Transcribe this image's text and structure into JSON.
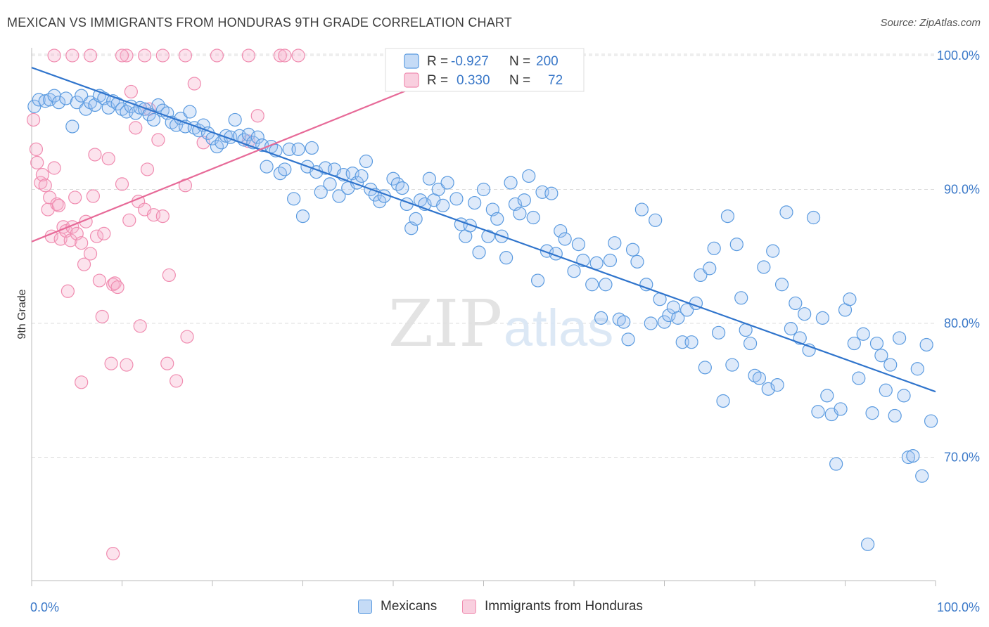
{
  "title": "MEXICAN VS IMMIGRANTS FROM HONDURAS 9TH GRADE CORRELATION CHART",
  "source": "Source: ZipAtlas.com",
  "watermark": {
    "zip": "ZIP",
    "atlas": "atlas"
  },
  "colors": {
    "blue": "#5b9be0",
    "blue_line": "#2f74cc",
    "pink": "#f08cb0",
    "pink_line": "#e76a98",
    "tick_text": "#3a78c8"
  },
  "stats_legend": [
    {
      "r_label": "R =",
      "r_value": "-0.927",
      "n_label": "N =",
      "n_value": "200"
    },
    {
      "r_label": "R =",
      "r_value": "0.330",
      "n_label": "N =",
      "n_value": "72"
    }
  ],
  "legend": [
    {
      "label": "Mexicans",
      "color": "#5b9be0"
    },
    {
      "label": "Immigrants from Honduras",
      "color": "#f08cb0"
    }
  ],
  "chart_data": {
    "type": "scatter",
    "title": "MEXICAN VS IMMIGRANTS FROM HONDURAS 9TH GRADE CORRELATION CHART",
    "xlabel": "",
    "ylabel": "9th Grade",
    "xlim": [
      0,
      100
    ],
    "ylim": [
      61.5,
      102
    ],
    "x_tick_labels": [
      "0.0%",
      "100.0%"
    ],
    "y_ticks": [
      70,
      80,
      90,
      100
    ],
    "y_tick_labels": [
      "70.0%",
      "80.0%",
      "90.0%",
      "100.0%"
    ],
    "grid": true,
    "legend_position": "bottom",
    "series": [
      {
        "name": "Mexicans",
        "color": "#5b9be0",
        "trend": {
          "x": [
            0,
            100
          ],
          "y": [
            99.1,
            74.9
          ]
        },
        "points": [
          [
            0.3,
            96.2
          ],
          [
            0.8,
            96.7
          ],
          [
            1.5,
            96.6
          ],
          [
            2,
            96.7
          ],
          [
            2.5,
            97
          ],
          [
            3,
            96.5
          ],
          [
            3.8,
            96.8
          ],
          [
            4.5,
            94.7
          ],
          [
            5,
            96.5
          ],
          [
            5.5,
            97
          ],
          [
            6,
            96
          ],
          [
            6.5,
            96.5
          ],
          [
            7,
            96.3
          ],
          [
            7.5,
            97
          ],
          [
            8,
            96.8
          ],
          [
            8.5,
            96.1
          ],
          [
            9,
            96.6
          ],
          [
            9.5,
            96.4
          ],
          [
            10,
            96
          ],
          [
            10.5,
            95.8
          ],
          [
            11,
            96.2
          ],
          [
            11.5,
            95.7
          ],
          [
            12,
            96.1
          ],
          [
            12.5,
            96
          ],
          [
            13,
            95.6
          ],
          [
            13.5,
            95.2
          ],
          [
            14,
            96.3
          ],
          [
            14.5,
            95.9
          ],
          [
            15,
            95.7
          ],
          [
            15.5,
            95
          ],
          [
            16,
            94.8
          ],
          [
            16.5,
            95.3
          ],
          [
            17,
            94.7
          ],
          [
            17.5,
            95.8
          ],
          [
            18,
            94.6
          ],
          [
            18.5,
            94.4
          ],
          [
            19,
            94.8
          ],
          [
            19.5,
            94.2
          ],
          [
            20,
            93.8
          ],
          [
            20.5,
            93.2
          ],
          [
            21,
            93.5
          ],
          [
            21.5,
            94
          ],
          [
            22,
            93.9
          ],
          [
            22.5,
            95.2
          ],
          [
            23,
            94
          ],
          [
            23.5,
            93.7
          ],
          [
            24,
            94.1
          ],
          [
            24.5,
            93.5
          ],
          [
            25,
            93.9
          ],
          [
            25.5,
            93.3
          ],
          [
            26,
            91.7
          ],
          [
            26.5,
            93.2
          ],
          [
            27,
            92.9
          ],
          [
            27.5,
            91.2
          ],
          [
            28,
            91.5
          ],
          [
            28.5,
            93
          ],
          [
            29,
            89.3
          ],
          [
            29.5,
            93
          ],
          [
            30,
            88
          ],
          [
            30.5,
            91.7
          ],
          [
            31,
            93.1
          ],
          [
            31.5,
            91.3
          ],
          [
            32,
            89.8
          ],
          [
            32.5,
            91.6
          ],
          [
            33,
            90.4
          ],
          [
            33.5,
            91.5
          ],
          [
            34,
            89.5
          ],
          [
            34.5,
            91.1
          ],
          [
            35,
            90.1
          ],
          [
            35.5,
            91.2
          ],
          [
            36,
            90.5
          ],
          [
            36.5,
            91
          ],
          [
            37,
            92.1
          ],
          [
            37.5,
            90
          ],
          [
            38,
            89.6
          ],
          [
            38.5,
            89.1
          ],
          [
            39,
            89.5
          ],
          [
            40,
            90.8
          ],
          [
            40.5,
            90.4
          ],
          [
            41,
            90.1
          ],
          [
            41.5,
            88.9
          ],
          [
            42,
            87.1
          ],
          [
            42.5,
            87.8
          ],
          [
            43,
            89.2
          ],
          [
            43.5,
            88.9
          ],
          [
            44,
            90.8
          ],
          [
            44.5,
            89.2
          ],
          [
            45,
            90
          ],
          [
            45.5,
            88.8
          ],
          [
            46,
            90.5
          ],
          [
            47,
            89.3
          ],
          [
            47.5,
            87.4
          ],
          [
            48,
            86.5
          ],
          [
            48.5,
            87.3
          ],
          [
            49,
            89
          ],
          [
            49.5,
            85.3
          ],
          [
            50,
            90
          ],
          [
            50.5,
            86.5
          ],
          [
            51,
            88.5
          ],
          [
            51.5,
            87.8
          ],
          [
            52,
            86.5
          ],
          [
            52.5,
            84.9
          ],
          [
            53,
            90.5
          ],
          [
            53.5,
            88.9
          ],
          [
            54,
            88.2
          ],
          [
            54.5,
            89.2
          ],
          [
            55,
            91
          ],
          [
            55.5,
            87.9
          ],
          [
            56,
            83.2
          ],
          [
            56.5,
            89.8
          ],
          [
            57,
            85.4
          ],
          [
            57.5,
            89.7
          ],
          [
            58,
            85.2
          ],
          [
            58.5,
            86.9
          ],
          [
            59,
            86.3
          ],
          [
            60,
            83.9
          ],
          [
            60.5,
            85.9
          ],
          [
            61,
            84.7
          ],
          [
            62,
            82.9
          ],
          [
            62.5,
            84.5
          ],
          [
            63,
            80.4
          ],
          [
            63.5,
            82.9
          ],
          [
            64,
            84.7
          ],
          [
            64.5,
            86
          ],
          [
            65,
            80.3
          ],
          [
            65.5,
            80.1
          ],
          [
            66,
            78.8
          ],
          [
            66.5,
            85.5
          ],
          [
            67,
            84.6
          ],
          [
            67.5,
            88.5
          ],
          [
            68,
            82.9
          ],
          [
            68.5,
            80
          ],
          [
            69,
            87.7
          ],
          [
            69.5,
            81.8
          ],
          [
            70,
            80.1
          ],
          [
            70.5,
            80.6
          ],
          [
            71,
            81.2
          ],
          [
            71.5,
            80.4
          ],
          [
            72,
            78.6
          ],
          [
            72.5,
            81
          ],
          [
            73,
            78.6
          ],
          [
            73.5,
            81.5
          ],
          [
            74,
            83.6
          ],
          [
            74.5,
            76.7
          ],
          [
            75,
            84.1
          ],
          [
            75.5,
            85.6
          ],
          [
            76,
            79.3
          ],
          [
            76.5,
            74.2
          ],
          [
            77,
            88
          ],
          [
            77.5,
            76.9
          ],
          [
            78,
            85.9
          ],
          [
            78.5,
            81.9
          ],
          [
            79,
            79.5
          ],
          [
            79.5,
            78.5
          ],
          [
            80,
            76.1
          ],
          [
            80.5,
            75.9
          ],
          [
            81,
            84.2
          ],
          [
            81.5,
            75.1
          ],
          [
            82,
            85.4
          ],
          [
            82.5,
            75.4
          ],
          [
            83,
            82.9
          ],
          [
            83.5,
            88.3
          ],
          [
            84,
            79.6
          ],
          [
            84.5,
            81.5
          ],
          [
            85,
            78.9
          ],
          [
            85.5,
            80.7
          ],
          [
            86,
            78
          ],
          [
            86.5,
            87.9
          ],
          [
            87,
            73.4
          ],
          [
            87.5,
            80.4
          ],
          [
            88,
            74.6
          ],
          [
            88.5,
            73.2
          ],
          [
            89,
            69.5
          ],
          [
            89.5,
            73.6
          ],
          [
            90,
            81
          ],
          [
            90.5,
            81.8
          ],
          [
            91,
            78.5
          ],
          [
            91.5,
            75.9
          ],
          [
            92,
            79.2
          ],
          [
            92.5,
            63.5
          ],
          [
            93,
            73.3
          ],
          [
            93.5,
            78.5
          ],
          [
            94,
            77.6
          ],
          [
            94.5,
            75
          ],
          [
            95,
            76.9
          ],
          [
            95.5,
            73.1
          ],
          [
            96,
            78.9
          ],
          [
            96.5,
            74.6
          ],
          [
            97,
            70
          ],
          [
            97.5,
            70.1
          ],
          [
            98,
            76.6
          ],
          [
            98.5,
            68.6
          ],
          [
            99,
            78.4
          ],
          [
            99.5,
            72.7
          ]
        ]
      },
      {
        "name": "Immigrants from Honduras",
        "color": "#f08cb0",
        "trend": {
          "x": [
            0,
            48.5
          ],
          "y": [
            86.1,
            99.3
          ]
        },
        "points": [
          [
            0.2,
            95.2
          ],
          [
            0.5,
            93
          ],
          [
            0.6,
            92
          ],
          [
            1,
            90.5
          ],
          [
            1.2,
            91.1
          ],
          [
            1.5,
            90.3
          ],
          [
            1.8,
            88.5
          ],
          [
            2,
            89.4
          ],
          [
            2.2,
            86.5
          ],
          [
            2.5,
            91.6
          ],
          [
            2.8,
            88.9
          ],
          [
            3,
            88.8
          ],
          [
            3.2,
            86.3
          ],
          [
            3.5,
            87.2
          ],
          [
            3.8,
            86.9
          ],
          [
            4,
            82.4
          ],
          [
            4.3,
            86.2
          ],
          [
            4.5,
            87.2
          ],
          [
            4.8,
            89.4
          ],
          [
            5,
            86.7
          ],
          [
            5.5,
            86
          ],
          [
            5.8,
            84.4
          ],
          [
            6,
            87.6
          ],
          [
            6.5,
            85.2
          ],
          [
            6.8,
            89.5
          ],
          [
            7,
            92.6
          ],
          [
            7.2,
            86.5
          ],
          [
            7.5,
            83.2
          ],
          [
            7.8,
            80.5
          ],
          [
            8,
            86.7
          ],
          [
            8.5,
            92.3
          ],
          [
            8.8,
            77
          ],
          [
            9,
            82.9
          ],
          [
            9.2,
            83
          ],
          [
            9.5,
            82.7
          ],
          [
            10,
            90.4
          ],
          [
            10.5,
            76.9
          ],
          [
            10.8,
            87.7
          ],
          [
            11,
            97.3
          ],
          [
            11.5,
            94.6
          ],
          [
            11.8,
            89.1
          ],
          [
            12,
            79.8
          ],
          [
            12.5,
            88.5
          ],
          [
            12.8,
            91.5
          ],
          [
            13,
            96
          ],
          [
            13.5,
            88.1
          ],
          [
            14,
            93.7
          ],
          [
            14.5,
            88
          ],
          [
            15,
            77
          ],
          [
            15.2,
            83.6
          ],
          [
            16,
            75.7
          ],
          [
            17,
            90.3
          ],
          [
            17.2,
            79
          ],
          [
            18,
            97.9
          ],
          [
            19,
            93.5
          ],
          [
            24,
            93.6
          ],
          [
            25,
            95.5
          ],
          [
            10.5,
            100
          ],
          [
            10,
            100
          ],
          [
            12.5,
            100
          ],
          [
            14.5,
            100
          ],
          [
            17,
            100
          ],
          [
            24,
            100
          ],
          [
            27.5,
            100
          ],
          [
            28,
            100
          ],
          [
            29.5,
            100
          ],
          [
            20.5,
            100
          ],
          [
            2.5,
            100
          ],
          [
            4.5,
            100
          ],
          [
            6.5,
            100
          ],
          [
            9,
            62.8
          ],
          [
            5.5,
            75.6
          ]
        ]
      }
    ]
  }
}
